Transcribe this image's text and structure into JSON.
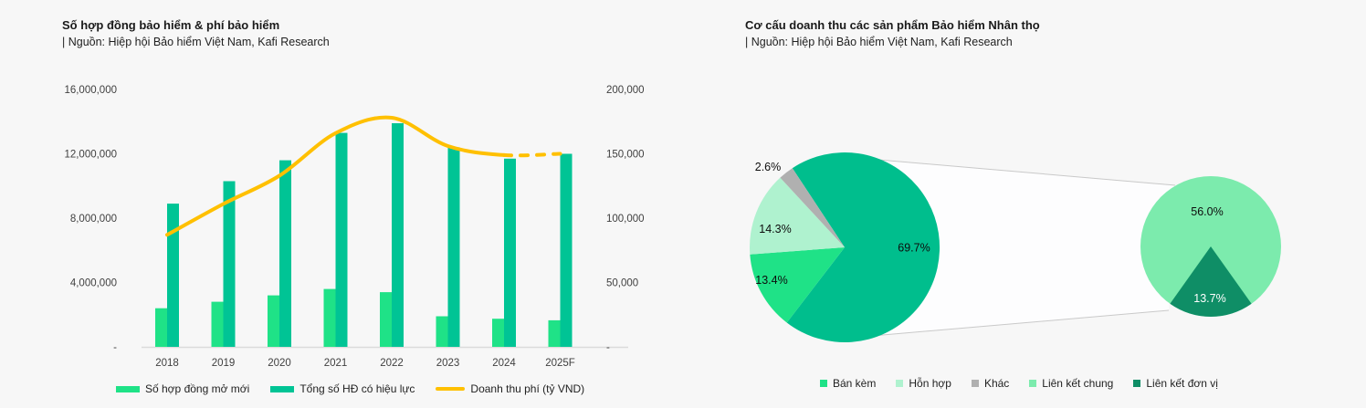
{
  "left_panel": {
    "title": "Số hợp đồng bảo hiểm & phí bảo hiểm",
    "source": "| Nguồn: Hiệp hội Bảo hiểm Việt Nam, Kafi Research",
    "legend": [
      "Số hợp đồng mở mới",
      "Tổng số HĐ có hiệu lực",
      "Doanh thu phí (tỷ VND)"
    ]
  },
  "right_panel": {
    "title": "Cơ cấu doanh thu các sản phẩm Bảo hiểm Nhân thọ",
    "source": "| Nguồn: Hiệp hội Bảo hiểm Việt Nam, Kafi Research",
    "legend": [
      "Bán kèm",
      "Hỗn hợp",
      "Khác",
      "Liên kết chung",
      "Liên kết đơn vị"
    ]
  },
  "chart_data": [
    {
      "type": "bar",
      "title": "Số hợp đồng bảo hiểm & phí bảo hiểm",
      "categories": [
        "2018",
        "2019",
        "2020",
        "2021",
        "2022",
        "2023",
        "2024",
        "2025F"
      ],
      "series": [
        {
          "name": "Số hợp đồng mở mới",
          "type": "bar",
          "axis": "left",
          "values": [
            2400000,
            2800000,
            3200000,
            3600000,
            3400000,
            1900000,
            1750000,
            1650000
          ]
        },
        {
          "name": "Tổng số HĐ có hiệu lực",
          "type": "bar",
          "axis": "left",
          "values": [
            8900000,
            10300000,
            11600000,
            13300000,
            13900000,
            12400000,
            11700000,
            12000000
          ]
        },
        {
          "name": "Doanh thu phí (tỷ VND)",
          "type": "line",
          "axis": "right",
          "smooth": true,
          "dashed_from_index": 6,
          "values": [
            87000,
            111000,
            133000,
            166000,
            178000,
            156000,
            149000,
            150000
          ]
        }
      ],
      "left_axis": {
        "min": 0,
        "max": 16000000,
        "ticks": [
          "16,000,000",
          "12,000,000",
          "8,000,000",
          "4,000,000",
          "-"
        ]
      },
      "right_axis": {
        "min": 0,
        "max": 200000,
        "ticks": [
          "200,000",
          "150,000",
          "100,000",
          "50,000",
          "-"
        ]
      },
      "grid": false,
      "legend_position": "bottom"
    },
    {
      "type": "pie",
      "variant": "pie-of-pie",
      "title": "Cơ cấu doanh thu các sản phẩm Bảo hiểm Nhân thọ",
      "main_pie": {
        "slices": [
          {
            "name": "Liên kết chung + Liên kết đơn vị (combined)",
            "value": 69.7,
            "label": "69.7%"
          },
          {
            "name": "Bán kèm",
            "value": 13.4,
            "label": "13.4%"
          },
          {
            "name": "Hỗn hợp",
            "value": 14.3,
            "label": "14.3%"
          },
          {
            "name": "Khác",
            "value": 2.6,
            "label": "2.6%"
          }
        ]
      },
      "secondary_pie": {
        "slices": [
          {
            "name": "Liên kết chung",
            "value": 56.0,
            "label": "56.0%"
          },
          {
            "name": "Liên kết đơn vị",
            "value": 13.7,
            "label": "13.7%"
          }
        ]
      },
      "legend_position": "bottom"
    }
  ],
  "colors": {
    "bar_new": "#1FE287",
    "bar_inforce": "#00C495",
    "line_premium": "#FFC000",
    "pie_combined": "#00BE8D",
    "pie_ban_kem": "#1FE287",
    "pie_hon_hop": "#AFF2CF",
    "pie_khac": "#B0B0B0",
    "pie_lk_chung": "#7CEBAD",
    "pie_lk_don_vi": "#0F8E66",
    "axis_text": "#404040",
    "connector_line": "#C9C9C9",
    "background": "#F7F7F7"
  }
}
